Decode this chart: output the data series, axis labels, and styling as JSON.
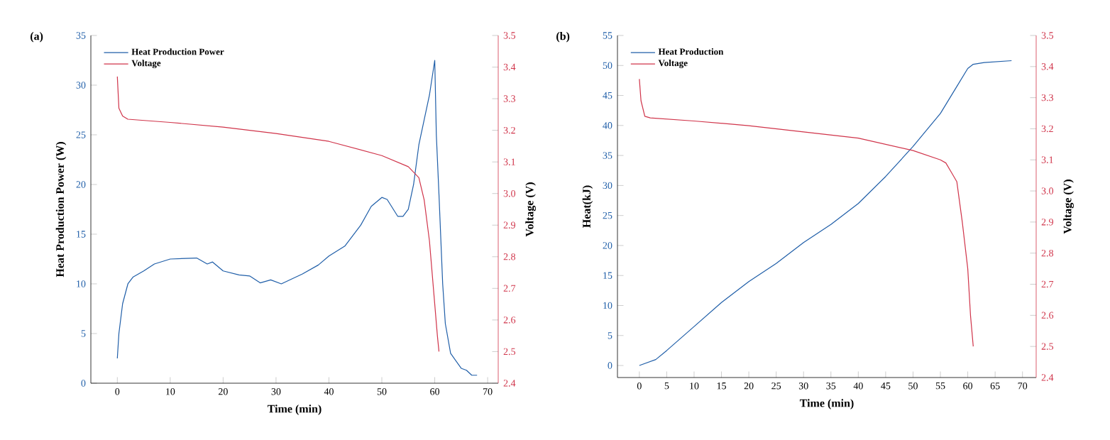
{
  "chart_data": [
    {
      "type": "line",
      "title": "(a)",
      "xlabel": "Time (min)",
      "ylabel": "Heat Production Power (W)",
      "y2label": "Voltage (V)",
      "legend": "top left",
      "xlim": [
        -5,
        72
      ],
      "xticks": [
        0,
        10,
        20,
        30,
        40,
        50,
        60,
        70
      ],
      "ylim": [
        0,
        35
      ],
      "yticks": [
        0,
        5,
        10,
        15,
        20,
        25,
        30,
        35
      ],
      "y2lim": [
        2.4,
        3.5
      ],
      "y2ticks": [
        2.4,
        2.5,
        2.6,
        2.7,
        2.8,
        2.9,
        {
          "value": 3,
          "label": "3.0"
        },
        3.1,
        3.2,
        3.3,
        3.4,
        3.5
      ],
      "series": [
        {
          "name": "Heat Production Power",
          "color": "#1f5ea8",
          "x": [
            0,
            0.3,
            1,
            2,
            3,
            5,
            7,
            10,
            15,
            17,
            18,
            20,
            23,
            25,
            27,
            29,
            31,
            35,
            38,
            40,
            43,
            46,
            48,
            50,
            51,
            53,
            54,
            55,
            56,
            57,
            58,
            59,
            60,
            60.3,
            60.8,
            61.5,
            62,
            63,
            65,
            66,
            67,
            68
          ],
          "values": [
            2.5,
            5,
            8,
            10,
            10.7,
            11.3,
            12,
            12.5,
            12.6,
            12,
            12.2,
            11.3,
            10.9,
            10.8,
            10.1,
            10.4,
            10,
            11,
            11.9,
            12.8,
            13.8,
            15.9,
            17.8,
            18.7,
            18.5,
            16.8,
            16.8,
            17.5,
            20,
            24,
            26.5,
            29,
            32.5,
            25,
            19,
            10,
            6,
            3,
            1.5,
            1.3,
            0.8,
            0.8
          ]
        },
        {
          "name": "Voltage",
          "color": "#d0344a",
          "axis": "y2",
          "x": [
            0,
            0.3,
            1,
            2,
            10,
            20,
            30,
            40,
            50,
            55,
            57,
            58,
            59,
            60,
            60.5,
            60.8
          ],
          "values": [
            3.37,
            3.27,
            3.245,
            3.235,
            3.225,
            3.21,
            3.19,
            3.165,
            3.12,
            3.085,
            3.05,
            2.98,
            2.85,
            2.65,
            2.55,
            2.5
          ]
        }
      ]
    },
    {
      "type": "line",
      "title": "(b)",
      "xlabel": "Time (min)",
      "ylabel": "Heat(kJ)",
      "y2label": "Voltage (V)",
      "legend": "top left",
      "xlim": [
        -4,
        72.5
      ],
      "xticks": [
        0,
        5,
        10,
        15,
        20,
        25,
        30,
        35,
        40,
        45,
        50,
        55,
        60,
        65,
        70
      ],
      "ylim": [
        -2,
        55
      ],
      "yticks": [
        0,
        5,
        10,
        15,
        20,
        25,
        30,
        35,
        40,
        45,
        50,
        55
      ],
      "y2lim": [
        2.4,
        3.5
      ],
      "y2ticks": [
        2.4,
        2.5,
        2.6,
        2.7,
        2.8,
        2.9,
        {
          "value": 3,
          "label": "3.0"
        },
        3.1,
        3.2,
        3.3,
        3.4,
        3.5
      ],
      "series": [
        {
          "name": "Heat Production",
          "color": "#1f5ea8",
          "x": [
            0,
            3,
            5,
            10,
            15,
            20,
            25,
            30,
            35,
            40,
            45,
            50,
            55,
            58,
            60,
            61,
            63,
            68
          ],
          "values": [
            0,
            1,
            2.5,
            6.5,
            10.5,
            14,
            17,
            20.5,
            23.5,
            27,
            31.5,
            36.5,
            42,
            46.5,
            49.5,
            50.2,
            50.5,
            50.8
          ]
        },
        {
          "name": "Voltage",
          "color": "#d0344a",
          "axis": "y2",
          "x": [
            0,
            0.3,
            1,
            2,
            10,
            20,
            30,
            40,
            50,
            55,
            56,
            57,
            58,
            59,
            60,
            60.5,
            61
          ],
          "values": [
            3.36,
            3.29,
            3.24,
            3.235,
            3.225,
            3.21,
            3.19,
            3.17,
            3.13,
            3.1,
            3.09,
            3.06,
            3.03,
            2.9,
            2.75,
            2.6,
            2.5
          ]
        }
      ]
    }
  ]
}
